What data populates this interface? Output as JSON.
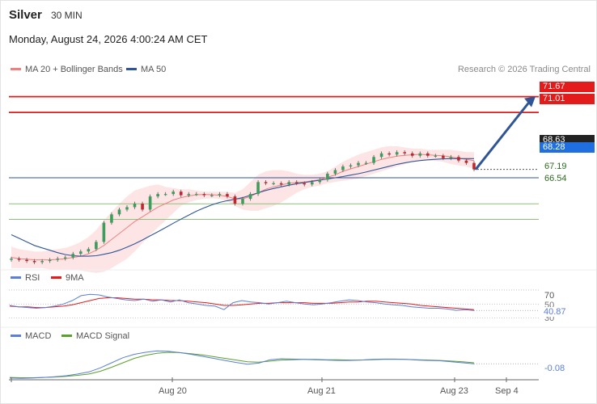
{
  "header": {
    "instrument": "Silver",
    "interval": "30 MIN",
    "datetime": "Monday, August 24, 2026 4:00:24 AM CET"
  },
  "legend": {
    "ma20": "MA 20 + Bollinger Bands",
    "ma50": "MA 50",
    "credit": "Research © 2026 Trading Central"
  },
  "colors": {
    "ma20": "#f08080",
    "ma50": "#2f5597",
    "band_fill": "#fde2e2",
    "resistance": "#e31b1b",
    "support": "#8bc17a",
    "pivot": "#2f5597",
    "bull": "#3c9d5d",
    "bear": "#c0272d",
    "arrow": "#2f5597",
    "rsi": "#5b7fd6",
    "rsi_ma": "#e31b1b",
    "macd": "#5b7fd6",
    "macd_signal": "#5aa02c"
  },
  "levels": {
    "r2": "71.67",
    "r1": "71.01",
    "last": "68.63",
    "pivot": "68.28",
    "s1": "67.19",
    "s2": "66.54"
  },
  "rsi": {
    "label": "RSI",
    "ma_label": "9MA",
    "tick_70": "70",
    "tick_50": "50",
    "tick_30": "30",
    "value": "40.87"
  },
  "macd": {
    "label": "MACD",
    "signal_label": "MACD Signal",
    "value": "-0.08"
  },
  "xaxis": {
    "ticks": [
      "Aug 20",
      "Aug 21",
      "Aug 23",
      "Sep 4"
    ]
  },
  "chart_data": {
    "type": "line",
    "title": "",
    "price_range": [
      64.7,
      72.4
    ],
    "price": [
      64.9,
      64.85,
      64.8,
      64.75,
      64.8,
      64.85,
      64.9,
      64.95,
      65.1,
      65.2,
      65.3,
      65.6,
      66.4,
      66.75,
      66.95,
      67.05,
      67.2,
      66.95,
      67.5,
      67.6,
      67.6,
      67.7,
      67.55,
      67.6,
      67.6,
      67.55,
      67.55,
      67.6,
      67.5,
      67.2,
      67.4,
      67.6,
      68.1,
      68.05,
      68.05,
      68.0,
      68.1,
      68.05,
      68.0,
      68.1,
      68.2,
      68.45,
      68.6,
      68.75,
      68.8,
      68.9,
      68.9,
      69.15,
      69.3,
      69.25,
      69.35,
      69.3,
      69.2,
      69.3,
      69.2,
      69.2,
      69.1,
      69.15,
      69.0,
      68.9,
      68.63
    ],
    "ma20": [
      64.95,
      64.9,
      64.88,
      64.85,
      64.85,
      64.85,
      64.87,
      64.9,
      64.95,
      65.0,
      65.1,
      65.25,
      65.45,
      65.7,
      65.95,
      66.2,
      66.45,
      66.65,
      66.85,
      67.05,
      67.2,
      67.35,
      67.45,
      67.52,
      67.57,
      67.58,
      67.57,
      67.55,
      67.5,
      67.4,
      67.4,
      67.5,
      67.65,
      67.8,
      67.9,
      67.98,
      68.05,
      68.08,
      68.1,
      68.15,
      68.2,
      68.3,
      68.4,
      68.55,
      68.65,
      68.75,
      68.85,
      68.95,
      69.05,
      69.12,
      69.18,
      69.22,
      69.24,
      69.26,
      69.24,
      69.22,
      69.2,
      69.15,
      69.1,
      69.05,
      69.0
    ],
    "ma50": [
      65.9,
      65.75,
      65.6,
      65.45,
      65.35,
      65.25,
      65.15,
      65.07,
      65.02,
      65.0,
      65.0,
      65.02,
      65.08,
      65.15,
      65.25,
      65.38,
      65.52,
      65.68,
      65.85,
      66.02,
      66.2,
      66.38,
      66.55,
      66.72,
      66.88,
      67.02,
      67.15,
      67.25,
      67.32,
      67.38,
      67.45,
      67.55,
      67.65,
      67.75,
      67.83,
      67.9,
      67.97,
      68.03,
      68.08,
      68.13,
      68.18,
      68.23,
      68.28,
      68.33,
      68.39,
      68.45,
      68.52,
      68.6,
      68.68,
      68.76,
      68.84,
      68.9,
      68.96,
      69.0,
      69.03,
      69.05,
      69.07,
      69.08,
      69.08,
      69.08,
      69.08
    ],
    "bands": {
      "upper": [
        65.4,
        65.3,
        65.25,
        65.2,
        65.2,
        65.25,
        65.3,
        65.35,
        65.45,
        65.6,
        65.8,
        66.1,
        66.5,
        66.85,
        67.2,
        67.5,
        67.75,
        67.85,
        67.95,
        68.0,
        67.9,
        67.85,
        67.8,
        67.8,
        67.75,
        67.7,
        67.7,
        67.7,
        67.7,
        67.65,
        67.8,
        68.1,
        68.4,
        68.55,
        68.6,
        68.6,
        68.55,
        68.45,
        68.4,
        68.4,
        68.45,
        68.55,
        68.75,
        68.95,
        69.1,
        69.25,
        69.35,
        69.45,
        69.55,
        69.6,
        69.6,
        69.55,
        69.5,
        69.5,
        69.45,
        69.45,
        69.45,
        69.45,
        69.4,
        69.35,
        69.35
      ],
      "lower": [
        64.5,
        64.5,
        64.5,
        64.5,
        64.5,
        64.45,
        64.45,
        64.45,
        64.45,
        64.4,
        64.35,
        64.3,
        64.35,
        64.5,
        64.7,
        64.9,
        65.2,
        65.55,
        65.9,
        66.2,
        66.5,
        66.8,
        67.1,
        67.25,
        67.35,
        67.4,
        67.42,
        67.4,
        67.3,
        67.1,
        66.95,
        66.9,
        66.9,
        67.0,
        67.1,
        67.25,
        67.45,
        67.65,
        67.8,
        67.9,
        67.95,
        68.05,
        68.1,
        68.15,
        68.2,
        68.25,
        68.35,
        68.45,
        68.55,
        68.65,
        68.75,
        68.85,
        68.95,
        69.0,
        69.0,
        68.98,
        68.95,
        68.85,
        68.8,
        68.75,
        68.65
      ]
    },
    "rsi_range": [
      25,
      78
    ],
    "rsi_values": [
      48,
      46,
      45,
      44,
      45,
      47,
      50,
      55,
      62,
      64,
      63,
      60,
      58,
      56,
      55,
      57,
      54,
      56,
      53,
      56,
      52,
      50,
      48,
      47,
      42,
      52,
      55,
      53,
      52,
      50,
      52,
      54,
      52,
      50,
      49,
      50,
      52,
      54,
      56,
      55,
      53,
      52,
      50,
      49,
      48,
      46,
      45,
      44,
      44,
      43,
      41,
      42,
      40.87
    ],
    "rsi_ma_values": [
      47,
      46,
      46,
      45,
      45,
      46,
      47,
      49,
      52,
      55,
      58,
      59,
      59,
      58,
      57,
      57,
      56,
      56,
      55,
      55,
      54,
      53,
      52,
      50,
      48,
      48,
      49,
      50,
      51,
      51,
      52,
      52,
      52,
      52,
      51,
      51,
      51,
      52,
      53,
      53,
      54,
      54,
      53,
      52,
      51,
      50,
      48,
      47,
      46,
      45,
      44,
      43,
      42
    ],
    "macd_range": [
      -0.55,
      0.45
    ],
    "macd_values": [
      -0.5,
      -0.51,
      -0.5,
      -0.48,
      -0.46,
      -0.43,
      -0.38,
      -0.32,
      -0.2,
      -0.05,
      0.1,
      0.2,
      0.26,
      0.3,
      0.29,
      0.25,
      0.2,
      0.14,
      0.08,
      0.02,
      -0.04,
      -0.09,
      -0.06,
      0.04,
      0.07,
      0.06,
      0.05,
      0.04,
      0.03,
      0.02,
      0.02,
      0.03,
      0.05,
      0.06,
      0.06,
      0.05,
      0.03,
      0.02,
      0.01,
      -0.02,
      -0.05,
      -0.08
    ],
    "macd_signal_values": [
      -0.48,
      -0.49,
      -0.49,
      -0.48,
      -0.47,
      -0.45,
      -0.42,
      -0.38,
      -0.3,
      -0.18,
      -0.05,
      0.08,
      0.17,
      0.23,
      0.26,
      0.25,
      0.22,
      0.18,
      0.13,
      0.08,
      0.03,
      -0.02,
      -0.03,
      0.0,
      0.03,
      0.04,
      0.05,
      0.05,
      0.04,
      0.04,
      0.03,
      0.03,
      0.04,
      0.05,
      0.05,
      0.05,
      0.04,
      0.03,
      0.02,
      0.0,
      -0.02,
      -0.05
    ],
    "forecast_target": 71.67
  }
}
